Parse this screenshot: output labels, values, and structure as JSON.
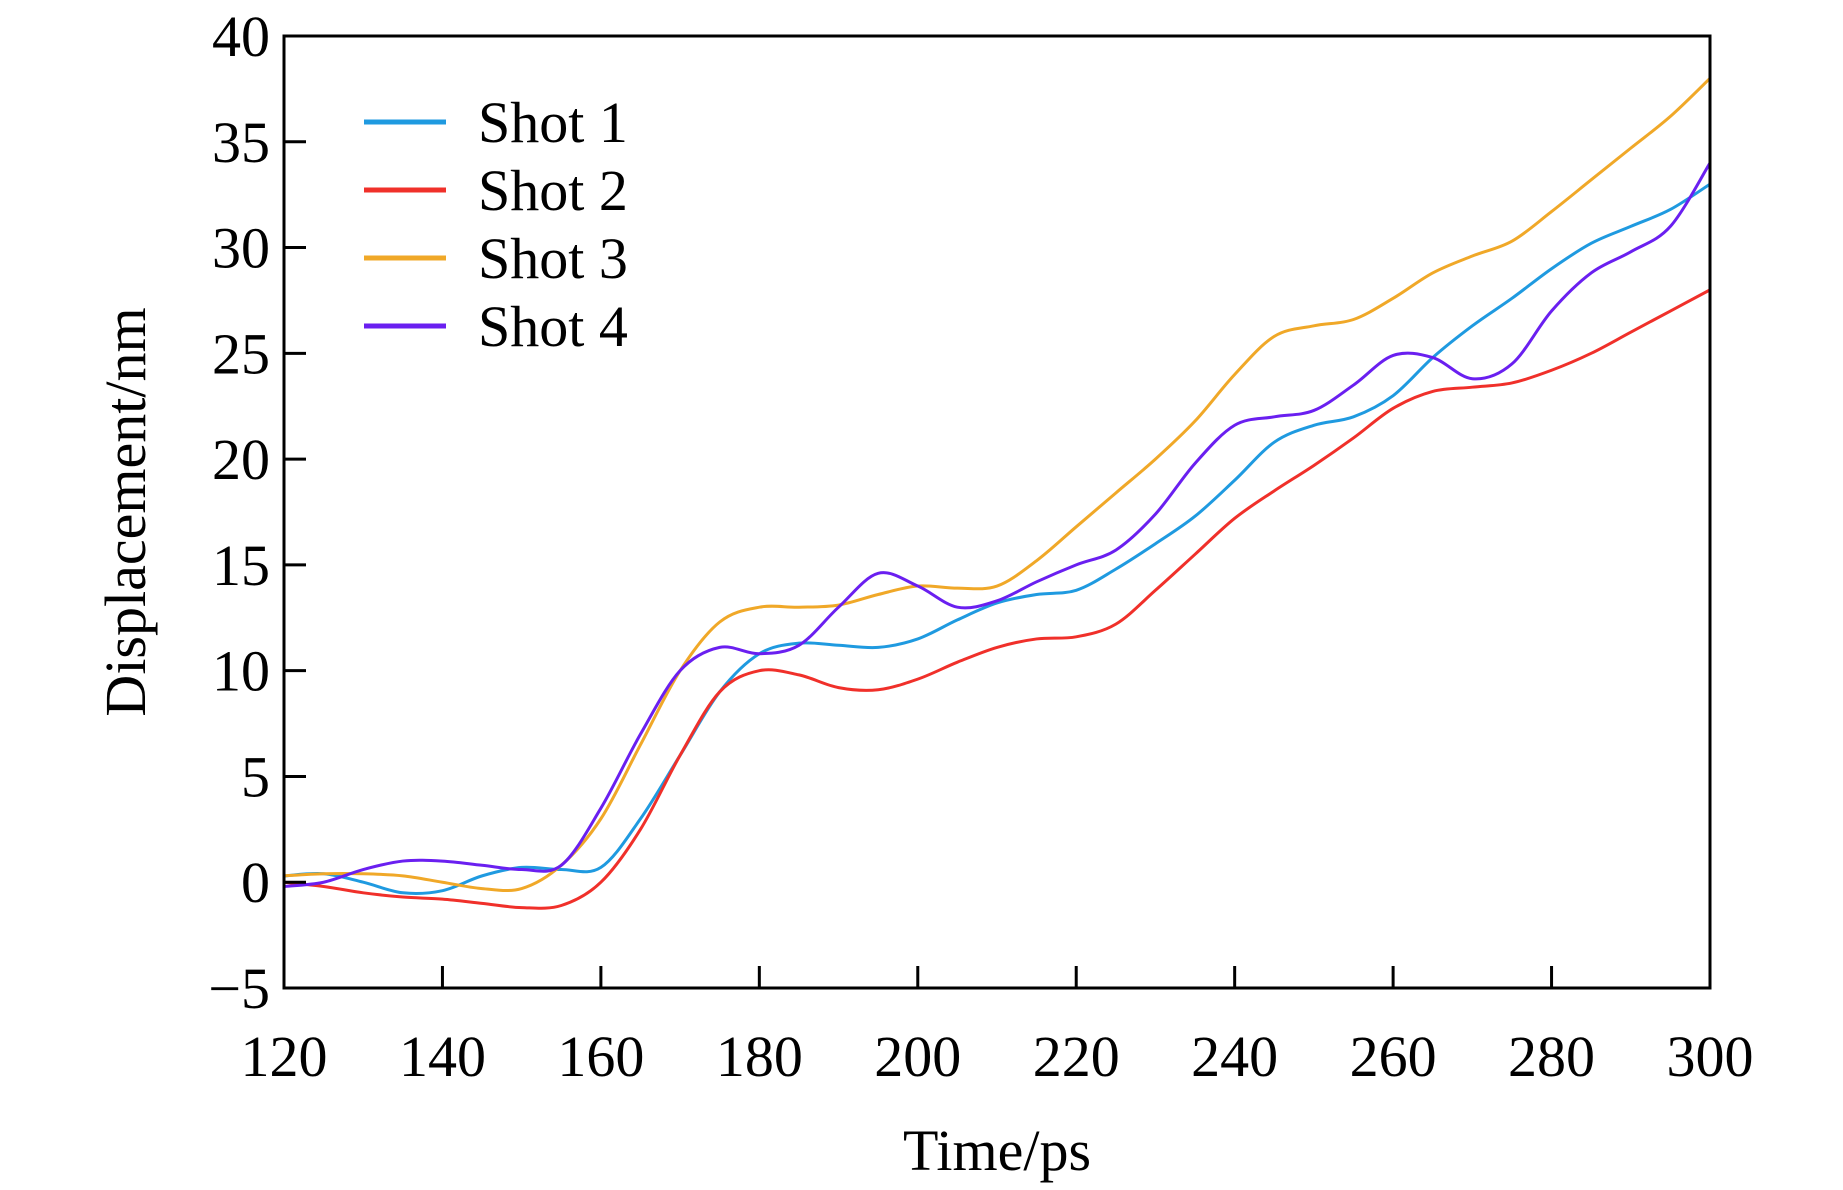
{
  "chart_data": {
    "type": "line",
    "title": "",
    "xlabel": "Time/ps",
    "ylabel": "Displacement/nm",
    "xlim": [
      120,
      300
    ],
    "ylim": [
      -5,
      40
    ],
    "xticks": [
      120,
      140,
      160,
      180,
      200,
      220,
      240,
      260,
      280,
      300
    ],
    "yticks": [
      -5,
      0,
      5,
      10,
      15,
      20,
      25,
      30,
      35,
      40
    ],
    "xtick_labels": [
      "120",
      "140",
      "160",
      "180",
      "200",
      "220",
      "240",
      "260",
      "280",
      "300"
    ],
    "ytick_labels": [
      "−5",
      "0",
      "5",
      "10",
      "15",
      "20",
      "25",
      "30",
      "35",
      "40"
    ],
    "grid": false,
    "legend_position": "top-left",
    "x": [
      120,
      125,
      130,
      135,
      140,
      145,
      150,
      155,
      160,
      165,
      170,
      175,
      180,
      185,
      190,
      195,
      200,
      205,
      210,
      215,
      220,
      225,
      230,
      235,
      240,
      245,
      250,
      255,
      260,
      265,
      270,
      275,
      280,
      285,
      290,
      295,
      300
    ],
    "series": [
      {
        "name": "Shot 1",
        "color": "#1f9ae0",
        "values": [
          0.3,
          0.4,
          0,
          -0.5,
          -0.4,
          0.3,
          0.7,
          0.6,
          0.7,
          3,
          6,
          9,
          10.8,
          11.3,
          11.2,
          11.1,
          11.5,
          12.4,
          13.2,
          13.6,
          13.8,
          14.8,
          16,
          17.3,
          19,
          20.8,
          21.6,
          22,
          23,
          24.8,
          26.3,
          27.6,
          29,
          30.2,
          31,
          31.8,
          33
        ]
      },
      {
        "name": "Shot 2",
        "color": "#f0302a",
        "values": [
          0,
          -0.2,
          -0.5,
          -0.7,
          -0.8,
          -1,
          -1.2,
          -1.1,
          0,
          2.5,
          6,
          9,
          10,
          9.8,
          9.2,
          9.1,
          9.6,
          10.4,
          11.1,
          11.5,
          11.6,
          12.2,
          13.8,
          15.5,
          17.2,
          18.5,
          19.7,
          21,
          22.4,
          23.2,
          23.4,
          23.6,
          24.2,
          25,
          26,
          27,
          28
        ]
      },
      {
        "name": "Shot 3",
        "color": "#f0a828",
        "values": [
          0.3,
          0.4,
          0.4,
          0.3,
          0,
          -0.3,
          -0.3,
          0.8,
          3,
          6.5,
          10,
          12.3,
          13,
          13,
          13.1,
          13.6,
          14,
          13.9,
          14,
          15.2,
          16.8,
          18.4,
          20,
          21.8,
          24,
          25.8,
          26.3,
          26.6,
          27.6,
          28.8,
          29.6,
          30.3,
          31.7,
          33.2,
          34.7,
          36.2,
          38
        ]
      },
      {
        "name": "Shot 4",
        "color": "#6a1ff0",
        "values": [
          -0.2,
          0,
          0.6,
          1,
          1,
          0.8,
          0.6,
          0.8,
          3.5,
          7,
          10,
          11.1,
          10.8,
          11.2,
          13,
          14.6,
          14,
          13,
          13.3,
          14.2,
          15,
          15.7,
          17.4,
          19.8,
          21.6,
          22,
          22.3,
          23.5,
          24.9,
          24.8,
          23.8,
          24.5,
          27,
          28.8,
          29.8,
          31,
          34
        ]
      }
    ]
  }
}
